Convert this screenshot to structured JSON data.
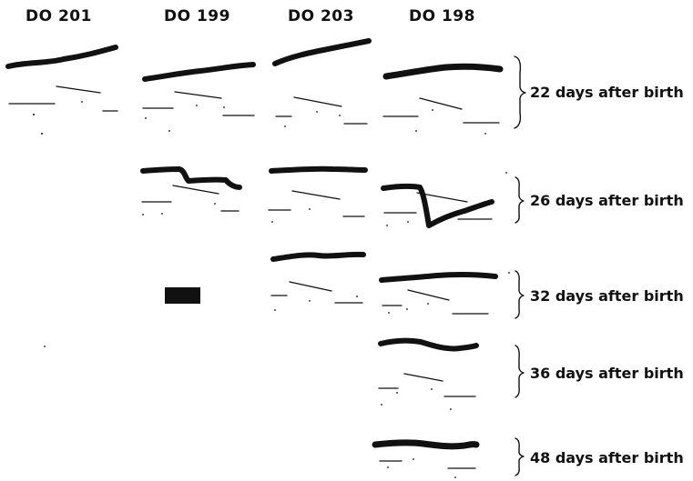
{
  "columns": [
    {
      "label": "DO 201"
    },
    {
      "label": "DO 199"
    },
    {
      "label": "DO 203"
    },
    {
      "label": "DO 198"
    }
  ],
  "rows": [
    {
      "label": "22 days after birth"
    },
    {
      "label": "26 days after birth"
    },
    {
      "label": "32 days after birth"
    },
    {
      "label": "36 days after birth"
    },
    {
      "label": "48 days after birth"
    }
  ],
  "trace_color": "#111111",
  "background_color": "#ffffff"
}
